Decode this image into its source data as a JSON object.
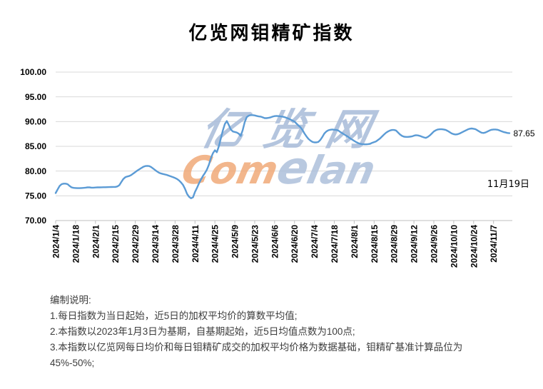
{
  "title": "亿览网钼精矿指数",
  "watermark": {
    "cn": "亿览网",
    "com": "Com",
    "e": "e",
    "lan": "lan"
  },
  "annotation": {
    "last_value_label": "87.65",
    "last_date_label": "11月19日"
  },
  "notes": {
    "heading": "编制说明:",
    "items": [
      "1.每日指数为当日起始，近5日的加权平均价的算数平均值;",
      "2.本指数以2023年1月3日为基期，自基期起始，近5日均值点数为100点;",
      "3.本指数以亿览网每日均价和每日钼精矿成交的加权平均价格为数据基础，钼精矿基准计算品位为45%-50%;"
    ]
  },
  "colors": {
    "line": "#5B9BD5",
    "grid": "#D9D9D9",
    "axis": "#BFBFBF",
    "watermark_blue": "#A8BCD9",
    "watermark_orange": "#F0A470",
    "text": "#000000",
    "note_text": "#3D3D3D"
  },
  "chart_data": {
    "type": "line",
    "title": "亿览网钼精矿指数",
    "xlabel": "",
    "ylabel": "",
    "ylim": [
      70,
      100
    ],
    "y_tick_step": 5,
    "y_ticks": [
      "100.00",
      "95.00",
      "90.00",
      "85.00",
      "80.00",
      "75.00",
      "70.00"
    ],
    "grid": "horizontal",
    "legend": "none",
    "points_per_tick": 10,
    "x_tick_labels": [
      "2024/1/4",
      "2024/1/18",
      "2024/2/1",
      "2024/2/15",
      "2024/2/29",
      "2024/3/14",
      "2024/3/28",
      "2024/4/11",
      "2024/4/25",
      "2024/5/9",
      "2024/5/23",
      "2024/6/6",
      "2024/6/20",
      "2024/7/4",
      "2024/7/18",
      "2024/8/1",
      "2024/8/15",
      "2024/8/29",
      "2024/9/12",
      "2024/9/26",
      "2024/10/10",
      "2024/10/24",
      "2024/11/7"
    ],
    "series": [
      {
        "name": "钼精矿指数",
        "start_date": "2024/1/4",
        "end_date": "11月19日",
        "end_value": 87.65,
        "values": [
          75.55,
          76.3,
          77.0,
          77.35,
          77.45,
          77.45,
          77.35,
          77.0,
          76.7,
          76.6,
          76.58,
          76.55,
          76.55,
          76.58,
          76.6,
          76.65,
          76.7,
          76.7,
          76.65,
          76.65,
          76.68,
          76.7,
          76.7,
          76.72,
          76.73,
          76.74,
          76.75,
          76.76,
          76.78,
          76.79,
          76.8,
          76.9,
          77.15,
          77.8,
          78.4,
          78.75,
          78.9,
          79.0,
          79.2,
          79.5,
          79.8,
          80.1,
          80.35,
          80.6,
          80.85,
          81.0,
          81.05,
          81.0,
          80.8,
          80.5,
          80.2,
          79.9,
          79.65,
          79.5,
          79.4,
          79.3,
          79.2,
          79.05,
          78.9,
          78.75,
          78.6,
          78.4,
          78.1,
          77.7,
          77.2,
          76.4,
          75.4,
          74.8,
          74.5,
          74.7,
          75.8,
          76.6,
          77.5,
          78.3,
          79.0,
          79.6,
          80.3,
          81.3,
          82.6,
          83.6,
          84.2,
          83.8,
          85.0,
          86.6,
          88.2,
          89.5,
          90.1,
          89.3,
          88.4,
          88.0,
          87.9,
          87.8,
          87.55,
          87.1,
          88.3,
          89.9,
          90.9,
          91.2,
          91.3,
          91.3,
          91.25,
          91.15,
          91.05,
          91.0,
          90.85,
          90.7,
          90.7,
          90.75,
          90.85,
          91.0,
          91.1,
          91.15,
          91.1,
          91.05,
          91.0,
          90.9,
          90.75,
          90.6,
          90.4,
          90.2,
          90.0,
          89.6,
          89.2,
          88.85,
          88.3,
          87.6,
          87.0,
          86.5,
          86.15,
          85.9,
          85.8,
          85.8,
          85.9,
          86.3,
          86.9,
          87.6,
          88.0,
          88.25,
          88.35,
          88.4,
          88.35,
          88.3,
          88.2,
          87.9,
          87.65,
          87.4,
          87.15,
          86.9,
          86.6,
          86.35,
          86.1,
          85.85,
          85.65,
          85.5,
          85.45,
          85.4,
          85.4,
          85.45,
          85.5,
          85.7,
          85.85,
          86.0,
          86.3,
          86.6,
          87.0,
          87.4,
          87.75,
          88.0,
          88.2,
          88.3,
          88.3,
          88.2,
          87.8,
          87.4,
          87.1,
          86.95,
          86.9,
          86.9,
          86.95,
          87.0,
          87.15,
          87.25,
          87.2,
          87.1,
          86.95,
          86.8,
          86.7,
          86.9,
          87.2,
          87.6,
          88.0,
          88.25,
          88.4,
          88.45,
          88.45,
          88.4,
          88.3,
          88.1,
          87.85,
          87.6,
          87.45,
          87.4,
          87.45,
          87.6,
          87.8,
          88.0,
          88.2,
          88.4,
          88.55,
          88.6,
          88.55,
          88.45,
          88.2,
          87.95,
          87.75,
          87.7,
          87.8,
          88.0,
          88.2,
          88.35,
          88.4,
          88.4,
          88.35,
          88.2,
          88.05,
          87.9,
          87.8,
          87.7,
          87.65
        ]
      }
    ]
  }
}
